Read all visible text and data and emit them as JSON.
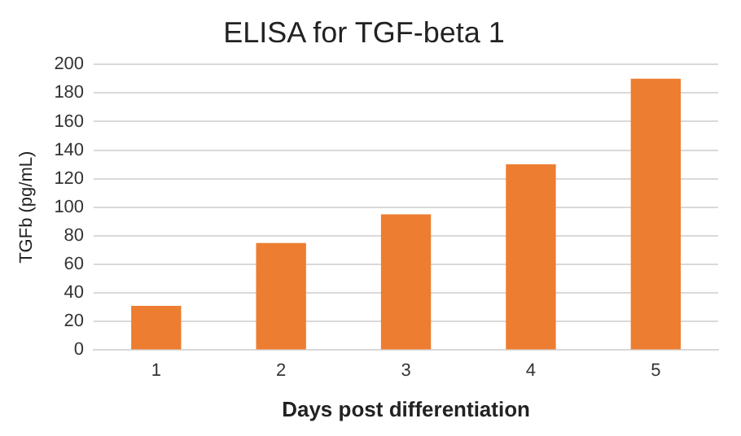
{
  "chart_data": {
    "type": "bar",
    "title": "ELISA for TGF-beta 1",
    "xlabel": "Days post differentiation",
    "ylabel": "TGFb (pg/mL)",
    "categories": [
      "1",
      "2",
      "3",
      "4",
      "5"
    ],
    "values": [
      31,
      75,
      95,
      130,
      190
    ],
    "color": "#ed7d31",
    "ylim": [
      0,
      200
    ],
    "yticks": [
      0,
      20,
      40,
      60,
      80,
      100,
      120,
      140,
      160,
      180,
      200
    ],
    "grid": "y",
    "legend": false
  }
}
